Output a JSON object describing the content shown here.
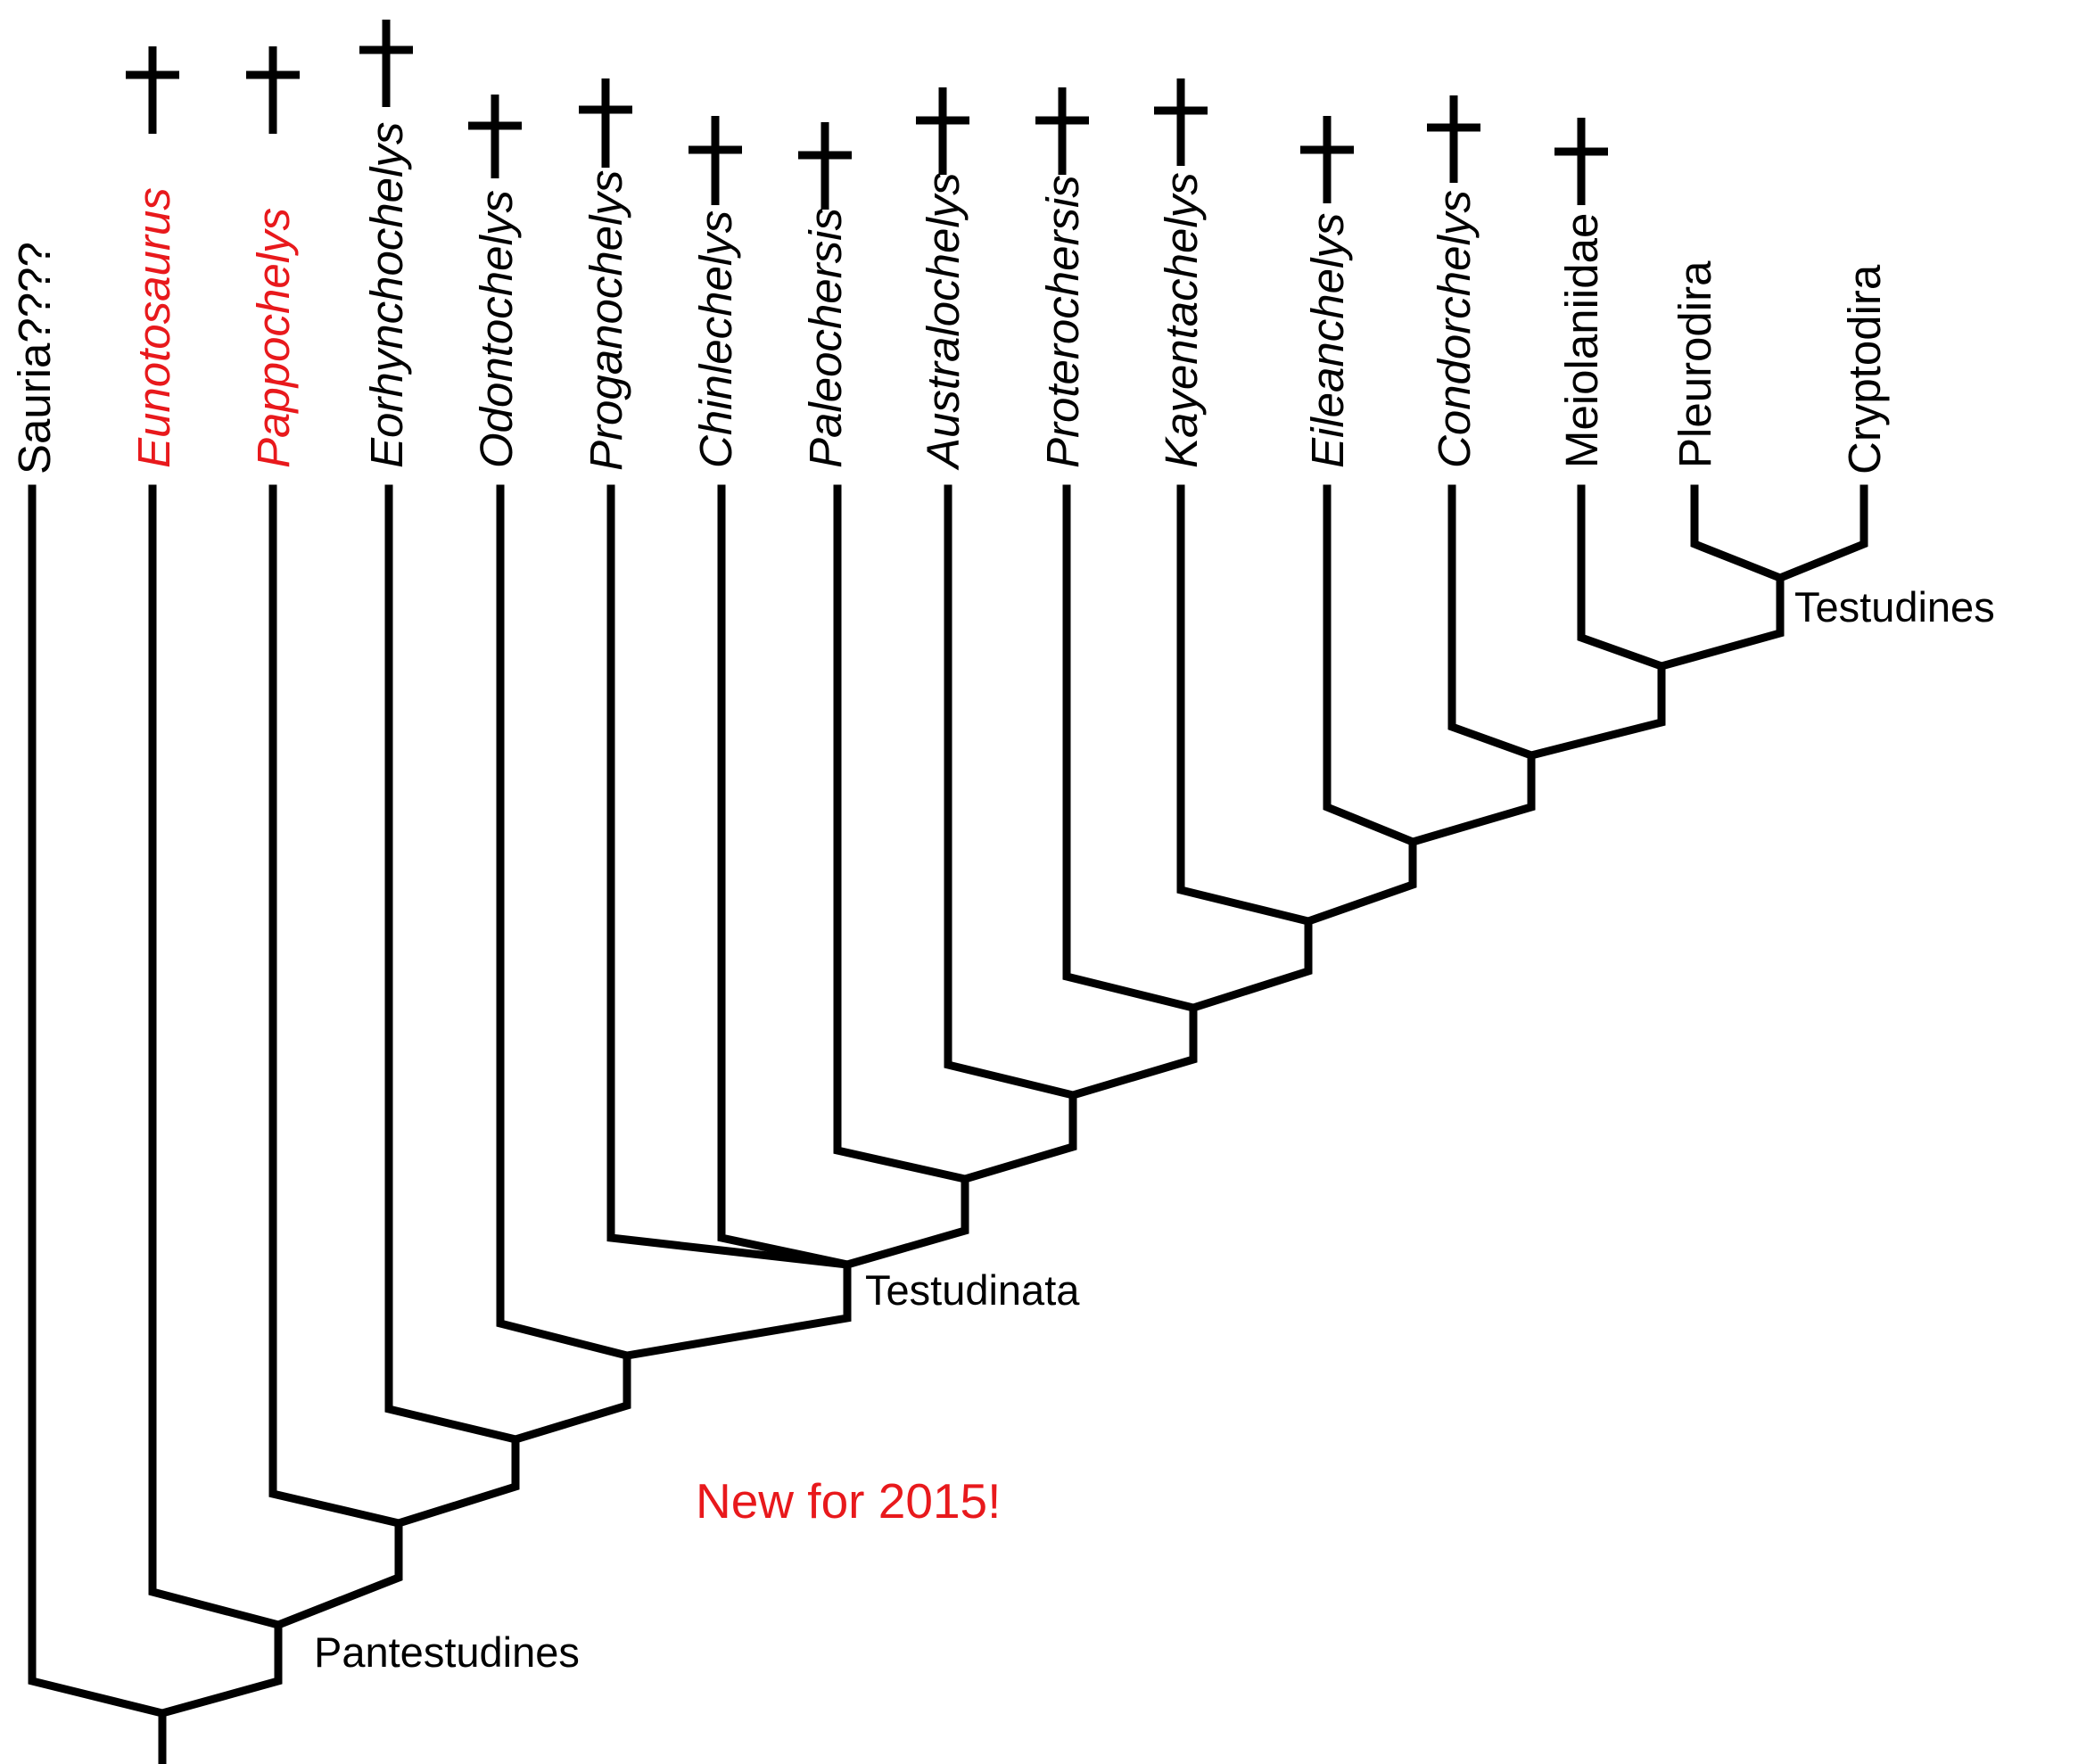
{
  "colors": {
    "line": "#000000",
    "text": "#000000",
    "highlight": "#e8191c"
  },
  "taxa": [
    {
      "id": "sauria",
      "label": "Sauria????",
      "italic": false,
      "extinct": false,
      "highlight": false
    },
    {
      "id": "eunotosaurus",
      "label": "Eunotosaurus",
      "italic": true,
      "extinct": true,
      "highlight": true
    },
    {
      "id": "pappochelys",
      "label": "Pappochelys",
      "italic": true,
      "extinct": true,
      "highlight": true
    },
    {
      "id": "eorhynchochelys",
      "label": "Eorhynchochelys",
      "italic": true,
      "extinct": true,
      "highlight": false
    },
    {
      "id": "odontochelys",
      "label": "Odontochelys",
      "italic": true,
      "extinct": true,
      "highlight": false
    },
    {
      "id": "proganochelys",
      "label": "Proganochelys",
      "italic": true,
      "extinct": true,
      "highlight": false
    },
    {
      "id": "chinlechelys",
      "label": "Chinlechelys",
      "italic": true,
      "extinct": true,
      "highlight": false
    },
    {
      "id": "paleochersis",
      "label": "Paleochersis",
      "italic": true,
      "extinct": true,
      "highlight": false
    },
    {
      "id": "australochelys",
      "label": "Australochelys",
      "italic": true,
      "extinct": true,
      "highlight": false
    },
    {
      "id": "proterochersis",
      "label": "Proterochersis",
      "italic": true,
      "extinct": true,
      "highlight": false
    },
    {
      "id": "kayentachelys",
      "label": "Kayentachelys",
      "italic": true,
      "extinct": true,
      "highlight": false
    },
    {
      "id": "eileanchelys",
      "label": "Eileanchelys",
      "italic": true,
      "extinct": true,
      "highlight": false
    },
    {
      "id": "condorchelys",
      "label": "Condorchelys",
      "italic": true,
      "extinct": true,
      "highlight": false
    },
    {
      "id": "meiolaniidae",
      "label": "Meiolaniidae",
      "italic": false,
      "extinct": true,
      "highlight": false
    },
    {
      "id": "pleurodira",
      "label": "Pleurodira",
      "italic": false,
      "extinct": false,
      "highlight": false
    },
    {
      "id": "cryptodira",
      "label": "Cryptodira",
      "italic": false,
      "extinct": false,
      "highlight": false
    }
  ],
  "extinct_symbol": "†",
  "clades": {
    "testudines": "Testudines",
    "testudinata": "Testudinata",
    "pantestudines": "Pantestudines"
  },
  "note": "New for 2015!"
}
